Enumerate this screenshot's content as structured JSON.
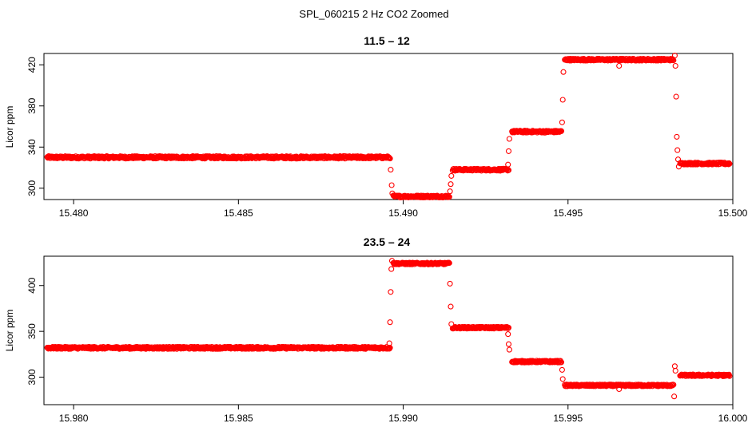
{
  "figure_title": "SPL_060215  2 Hz CO2 Zoomed",
  "colors": {
    "points": "#ff0000",
    "axes": "#000000"
  },
  "chart_data": [
    {
      "type": "scatter",
      "title": "11.5 – 12",
      "xlabel": "",
      "ylabel": "Licor ppm",
      "xlim": [
        15.4791,
        15.5
      ],
      "ylim": [
        289,
        431
      ],
      "x_ticks": [
        15.48,
        15.485,
        15.49,
        15.495,
        15.5
      ],
      "x_tick_labels": [
        "15.480",
        "15.485",
        "15.490",
        "15.495",
        "15.500"
      ],
      "y_ticks": [
        300,
        340,
        380,
        420
      ],
      "y_tick_labels": [
        "300",
        "340",
        "380",
        "420"
      ],
      "segments": [
        {
          "x_start": 15.4792,
          "x_end": 15.4896,
          "value": 330,
          "noise": 1.2
        },
        {
          "x_start": 15.4897,
          "x_end": 15.4914,
          "value": 292,
          "noise": 1.0
        },
        {
          "x_start": 15.4915,
          "x_end": 15.4932,
          "value": 318,
          "noise": 1.0
        },
        {
          "x_start": 15.4933,
          "x_end": 15.4948,
          "value": 355,
          "noise": 1.0
        },
        {
          "x_start": 15.4949,
          "x_end": 15.4982,
          "value": 425,
          "noise": 1.0
        },
        {
          "x_start": 15.4984,
          "x_end": 15.4999,
          "value": 324,
          "noise": 1.0
        }
      ],
      "transition_points": [
        {
          "x": 15.48962,
          "y": 318
        },
        {
          "x": 15.48965,
          "y": 303
        },
        {
          "x": 15.48967,
          "y": 295
        },
        {
          "x": 15.49142,
          "y": 297
        },
        {
          "x": 15.49144,
          "y": 304
        },
        {
          "x": 15.49146,
          "y": 312
        },
        {
          "x": 15.49318,
          "y": 323
        },
        {
          "x": 15.4932,
          "y": 336
        },
        {
          "x": 15.49322,
          "y": 348
        },
        {
          "x": 15.49482,
          "y": 364
        },
        {
          "x": 15.49484,
          "y": 386
        },
        {
          "x": 15.49486,
          "y": 413
        },
        {
          "x": 15.49655,
          "y": 419
        },
        {
          "x": 15.49824,
          "y": 429
        },
        {
          "x": 15.49826,
          "y": 419
        },
        {
          "x": 15.49828,
          "y": 389
        },
        {
          "x": 15.4983,
          "y": 350
        },
        {
          "x": 15.49832,
          "y": 337
        },
        {
          "x": 15.49834,
          "y": 328
        },
        {
          "x": 15.49836,
          "y": 321
        }
      ]
    },
    {
      "type": "scatter",
      "title": "23.5 – 24",
      "xlabel": "",
      "ylabel": "Licor ppm",
      "xlim": [
        15.9791,
        16.0
      ],
      "ylim": [
        270,
        432
      ],
      "x_ticks": [
        15.98,
        15.985,
        15.99,
        15.995,
        16.0
      ],
      "x_tick_labels": [
        "15.980",
        "15.985",
        "15.990",
        "15.995",
        "16.000"
      ],
      "y_ticks": [
        300,
        350,
        400
      ],
      "y_tick_labels": [
        "300",
        "350",
        "400"
      ],
      "segments": [
        {
          "x_start": 15.9792,
          "x_end": 15.9896,
          "value": 332,
          "noise": 1.2
        },
        {
          "x_start": 15.9897,
          "x_end": 15.9914,
          "value": 424,
          "noise": 1.0
        },
        {
          "x_start": 15.9915,
          "x_end": 15.9932,
          "value": 354,
          "noise": 1.0
        },
        {
          "x_start": 15.9933,
          "x_end": 15.9948,
          "value": 317,
          "noise": 1.0
        },
        {
          "x_start": 15.9949,
          "x_end": 15.9982,
          "value": 291,
          "noise": 1.0
        },
        {
          "x_start": 15.9984,
          "x_end": 15.9999,
          "value": 302,
          "noise": 1.0
        }
      ],
      "transition_points": [
        {
          "x": 15.98958,
          "y": 337
        },
        {
          "x": 15.9896,
          "y": 360
        },
        {
          "x": 15.98962,
          "y": 393
        },
        {
          "x": 15.98964,
          "y": 418
        },
        {
          "x": 15.98966,
          "y": 427
        },
        {
          "x": 15.99142,
          "y": 402
        },
        {
          "x": 15.99144,
          "y": 377
        },
        {
          "x": 15.99146,
          "y": 358
        },
        {
          "x": 15.99318,
          "y": 347
        },
        {
          "x": 15.9932,
          "y": 336
        },
        {
          "x": 15.99322,
          "y": 330
        },
        {
          "x": 15.99482,
          "y": 308
        },
        {
          "x": 15.99484,
          "y": 298
        },
        {
          "x": 15.99655,
          "y": 287
        },
        {
          "x": 15.99822,
          "y": 279
        },
        {
          "x": 15.99824,
          "y": 312
        },
        {
          "x": 15.99826,
          "y": 307
        }
      ]
    }
  ]
}
